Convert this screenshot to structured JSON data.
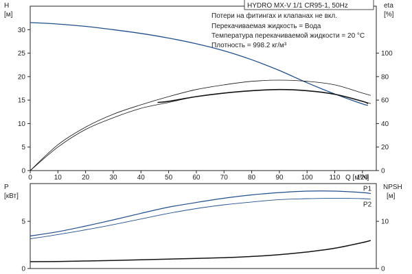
{
  "chart_data": [
    {
      "type": "line",
      "title": "HYDRO MX-V 1/1 CR95-1, 50Hz",
      "notes": [
        "Потери на фитингах и клапанах не вкл.",
        "Перекачиваемая жидкость = Вода",
        "Температура перекачиваемой жидкости = 20 °C",
        "Плотность = 998.2 кг/м³"
      ],
      "xlabel": "Q [м³/ч]",
      "xlim": [
        0,
        125
      ],
      "x_ticks": [
        0,
        10,
        20,
        30,
        40,
        50,
        60,
        70,
        80,
        90,
        100,
        110,
        120
      ],
      "left_axis": {
        "label_top": "H",
        "label_unit": "[м]",
        "ylim": [
          0,
          35
        ],
        "ticks": [
          0,
          5,
          10,
          15,
          20,
          25,
          30
        ]
      },
      "right_axis": {
        "label_top": "eta",
        "label_unit": "[%]",
        "ylim": [
          0,
          140
        ],
        "ticks": [
          0,
          20,
          40,
          60,
          80,
          100
        ]
      },
      "grid": false,
      "series": [
        {
          "color": "#1f4e8c",
          "axis": "left",
          "width": 1.3,
          "x": [
            0,
            10,
            20,
            30,
            40,
            50,
            60,
            70,
            80,
            90,
            100,
            110,
            120,
            122
          ],
          "y": [
            31.5,
            31.2,
            30.7,
            30.0,
            29.2,
            28.2,
            27.0,
            25.5,
            23.6,
            21.3,
            18.7,
            16.3,
            14.2,
            13.9
          ]
        },
        {
          "color": "#111111",
          "axis": "right",
          "width": 0.8,
          "x": [
            0,
            10,
            20,
            30,
            40,
            50,
            60,
            70,
            80,
            90,
            100,
            110,
            120,
            123
          ],
          "y": [
            0,
            22,
            37,
            48,
            56,
            63,
            69,
            73,
            76,
            77,
            76,
            73,
            66,
            64
          ]
        },
        {
          "color": "#111111",
          "axis": "right",
          "width": 0.8,
          "x": [
            0,
            10,
            20,
            30,
            40,
            50,
            60,
            70,
            80,
            90,
            100,
            110,
            120,
            123
          ],
          "y": [
            0,
            20,
            35,
            45,
            53,
            58,
            63,
            66,
            68,
            69,
            68,
            65,
            59,
            57
          ]
        },
        {
          "color": "#111111",
          "axis": "right",
          "width": 1.6,
          "x": [
            46,
            50,
            60,
            70,
            80,
            90,
            100,
            110,
            120,
            122
          ],
          "y": [
            58,
            59,
            63,
            66,
            68,
            69,
            68,
            65,
            59,
            57
          ]
        }
      ]
    },
    {
      "type": "line",
      "xlim": [
        0,
        125
      ],
      "left_axis": {
        "label_top": "P",
        "label_unit": "[кВт]",
        "ylim": [
          0,
          9
        ],
        "ticks": [
          0,
          5
        ]
      },
      "right_axis": {
        "label_top": "NPSH",
        "label_unit": "[м]",
        "ylim": [
          0,
          18
        ],
        "ticks": [
          0,
          10
        ]
      },
      "grid": false,
      "series": [
        {
          "name": "P1",
          "color": "#1f4e8c",
          "axis": "left",
          "width": 1.2,
          "x": [
            0,
            10,
            20,
            30,
            40,
            50,
            60,
            70,
            80,
            90,
            100,
            110,
            120,
            123
          ],
          "y": [
            3.45,
            3.9,
            4.5,
            5.15,
            5.85,
            6.5,
            7.0,
            7.45,
            7.8,
            8.05,
            8.2,
            8.2,
            8.05,
            7.95
          ]
        },
        {
          "name": "P2",
          "color": "#1f4e8c",
          "axis": "left",
          "width": 0.9,
          "x": [
            0,
            10,
            20,
            30,
            40,
            50,
            60,
            70,
            80,
            90,
            100,
            110,
            120,
            123
          ],
          "y": [
            3.15,
            3.6,
            4.1,
            4.65,
            5.25,
            5.85,
            6.35,
            6.75,
            7.05,
            7.3,
            7.4,
            7.45,
            7.4,
            7.35
          ]
        },
        {
          "color": "#111111",
          "axis": "right",
          "width": 1.5,
          "x": [
            0,
            10,
            20,
            30,
            40,
            50,
            60,
            70,
            80,
            90,
            100,
            110,
            120,
            123
          ],
          "y": [
            1.45,
            1.5,
            1.6,
            1.7,
            1.85,
            2.0,
            2.15,
            2.3,
            2.55,
            2.95,
            3.5,
            4.3,
            5.5,
            5.95
          ]
        }
      ]
    }
  ]
}
